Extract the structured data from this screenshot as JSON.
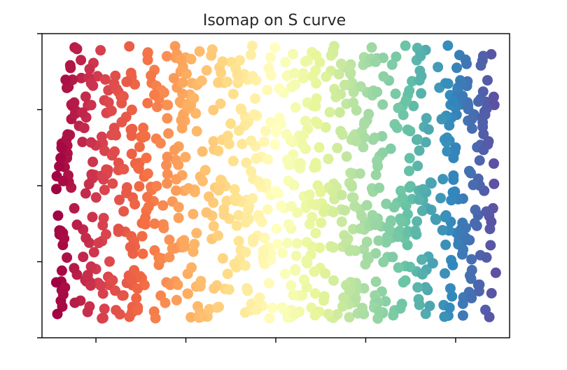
{
  "chart_data": {
    "type": "scatter",
    "title": "Isomap on S curve",
    "xlabel": "",
    "ylabel": "",
    "xlim": [
      -2.6,
      2.6
    ],
    "ylim": [
      -2.0,
      2.0
    ],
    "x_ticks": [
      -2,
      -1,
      0,
      1,
      2
    ],
    "y_ticks": [
      -2,
      -1,
      0,
      1,
      2
    ],
    "tick_labels_shown": false,
    "grid": false,
    "legend": "none",
    "colormap": "Spectral",
    "marker_size_px": 15,
    "x_range": [
      -2.45,
      2.45
    ],
    "y_range": [
      -1.75,
      1.85
    ],
    "n_points": 1000,
    "color_by": "x (red at left, through orange, yellow, green, teal to blue/purple at right)",
    "series": [
      {
        "values": "≈1000 points filling the rectangle x∈[-2.45, 2.45], y∈[-1.75, 1.85], colored along x with the Spectral colormap"
      }
    ]
  },
  "colors": {
    "frame": "#000000",
    "title": "#262626",
    "spectral": [
      "#9e0142",
      "#d53e4f",
      "#f46d43",
      "#fdae61",
      "#fee08b",
      "#ffffbf",
      "#e6f598",
      "#abdda4",
      "#66c2a5",
      "#3288bd",
      "#5e4fa2"
    ]
  }
}
